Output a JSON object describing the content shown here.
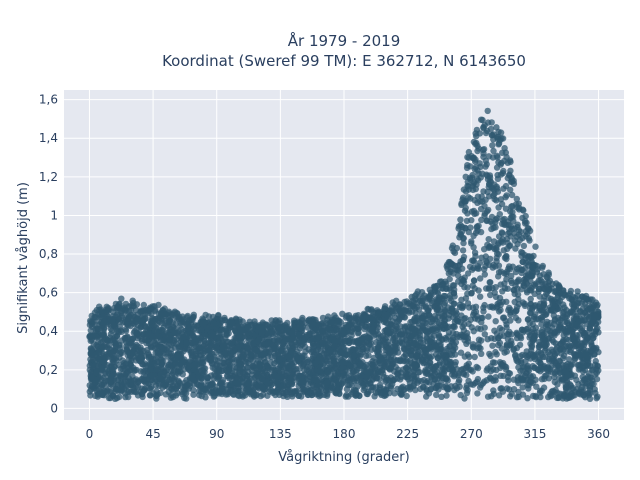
{
  "chart_data": {
    "type": "scatter",
    "title_line1": "År 1979 - 2019",
    "title_line2": "Koordinat (Sweref 99 TM): E 362712, N 6143650",
    "xlabel": "Vågriktning (grader)",
    "ylabel": "Signifikant våghöjd (m)",
    "xlim": [
      -18,
      378
    ],
    "ylim": [
      -0.06,
      1.65
    ],
    "x_ticks": [
      0,
      45,
      90,
      135,
      180,
      225,
      270,
      315,
      360
    ],
    "x_tick_labels": [
      "0",
      "45",
      "90",
      "135",
      "180",
      "225",
      "270",
      "315",
      "360"
    ],
    "y_ticks": [
      0,
      0.2,
      0.4,
      0.6,
      0.8,
      1.0,
      1.2,
      1.4,
      1.6
    ],
    "y_tick_labels": [
      "0",
      "0,2",
      "0,4",
      "0,6",
      "0,8",
      "1",
      "1,2",
      "1,4",
      "1,6"
    ],
    "grid": true,
    "colors": {
      "marker": "#2f5870",
      "plot_bg": "#e5e8f0",
      "grid": "#ffffff",
      "text": "#2a3f5f"
    },
    "envelope": {
      "x": [
        0,
        10,
        20,
        30,
        45,
        60,
        75,
        90,
        105,
        120,
        135,
        150,
        165,
        180,
        195,
        210,
        225,
        240,
        250,
        260,
        265,
        270,
        275,
        280,
        285,
        290,
        295,
        300,
        310,
        320,
        330,
        340,
        350,
        360
      ],
      "upper": [
        0.5,
        0.52,
        0.55,
        0.55,
        0.53,
        0.5,
        0.48,
        0.47,
        0.45,
        0.44,
        0.45,
        0.46,
        0.47,
        0.48,
        0.5,
        0.53,
        0.57,
        0.62,
        0.68,
        0.9,
        1.2,
        1.4,
        1.52,
        1.55,
        1.52,
        1.45,
        1.35,
        1.2,
        0.95,
        0.75,
        0.65,
        0.6,
        0.58,
        0.55
      ],
      "lower": [
        0.05,
        0.05,
        0.05,
        0.05,
        0.05,
        0.05,
        0.05,
        0.06,
        0.06,
        0.06,
        0.06,
        0.06,
        0.06,
        0.06,
        0.06,
        0.06,
        0.06,
        0.06,
        0.05,
        0.05,
        0.05,
        0.05,
        0.05,
        0.05,
        0.05,
        0.05,
        0.05,
        0.05,
        0.05,
        0.05,
        0.05,
        0.05,
        0.05,
        0.05
      ]
    }
  }
}
